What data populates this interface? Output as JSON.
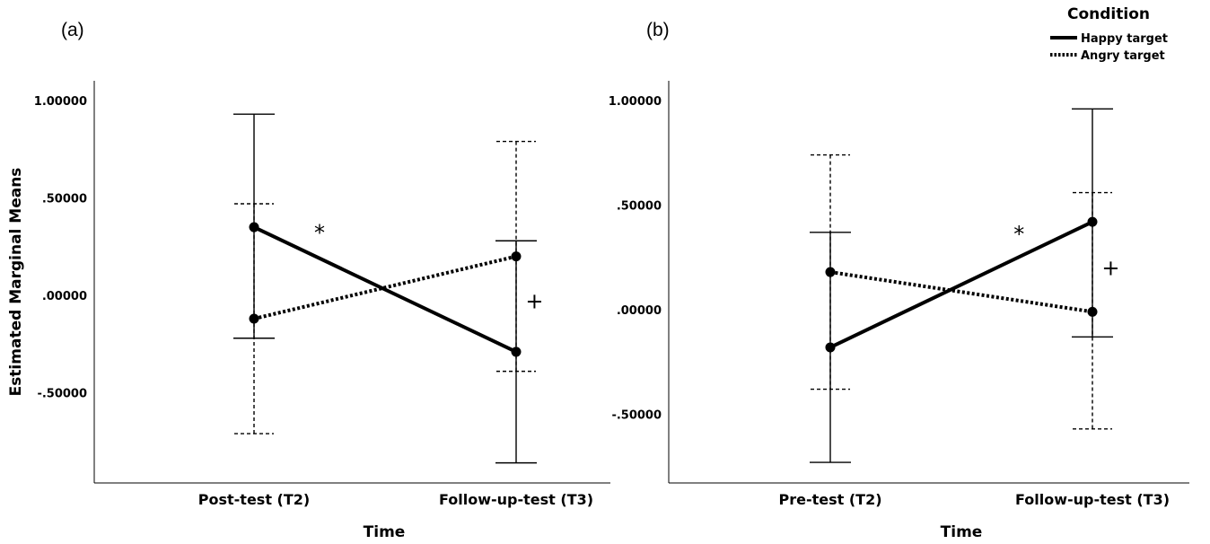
{
  "chart_data": [
    {
      "type": "line",
      "panel_label": "(a)",
      "categories": [
        "Post-test (T2)",
        "Follow-up-test (T3)"
      ],
      "xlabel": "Time",
      "ylabel": "Estimated Marginal Means",
      "yticks": [
        1.0,
        0.5,
        0.0,
        -0.5
      ],
      "ytick_labels": [
        "1.00000",
        ".50000",
        ".00000",
        "-.50000"
      ],
      "ylim": [
        -0.92,
        1.1
      ],
      "series": [
        {
          "name": "Happy target",
          "style": "solid",
          "values": [
            0.35,
            -0.29
          ],
          "err_low": [
            -0.22,
            -0.86
          ],
          "err_high": [
            0.93,
            0.28
          ]
        },
        {
          "name": "Angry target",
          "style": "dotted",
          "values": [
            -0.12,
            0.2
          ],
          "err_low": [
            -0.71,
            -0.39
          ],
          "err_high": [
            0.47,
            0.79
          ]
        }
      ],
      "annotations": [
        {
          "text": "*",
          "x": 0.25,
          "y": 0.32
        },
        {
          "text": "+",
          "x": 1.07,
          "y": -0.03
        }
      ]
    },
    {
      "type": "line",
      "panel_label": "(b)",
      "categories": [
        "Pre-test (T2)",
        "Follow-up-test (T3)"
      ],
      "xlabel": "Time",
      "ylabel": "",
      "yticks": [
        1.0,
        0.5,
        0.0,
        -0.5
      ],
      "ytick_labels": [
        "1.00000",
        ".50000",
        ".00000",
        "-.50000"
      ],
      "ylim": [
        -0.82,
        1.1
      ],
      "series": [
        {
          "name": "Happy target",
          "style": "solid",
          "values": [
            -0.18,
            0.42
          ],
          "err_low": [
            -0.73,
            -0.13
          ],
          "err_high": [
            0.37,
            0.96
          ]
        },
        {
          "name": "Angry target",
          "style": "dotted",
          "values": [
            0.18,
            -0.01
          ],
          "err_low": [
            -0.38,
            -0.57
          ],
          "err_high": [
            0.74,
            0.56
          ]
        }
      ],
      "annotations": [
        {
          "text": "*",
          "x": 0.72,
          "y": 0.36
        },
        {
          "text": "+",
          "x": 1.07,
          "y": 0.2
        }
      ]
    }
  ],
  "legend": {
    "title": "Condition",
    "placement": "top-right",
    "entries": [
      {
        "label": "Happy target",
        "style": "solid"
      },
      {
        "label": "Angry target",
        "style": "dotted"
      }
    ]
  }
}
